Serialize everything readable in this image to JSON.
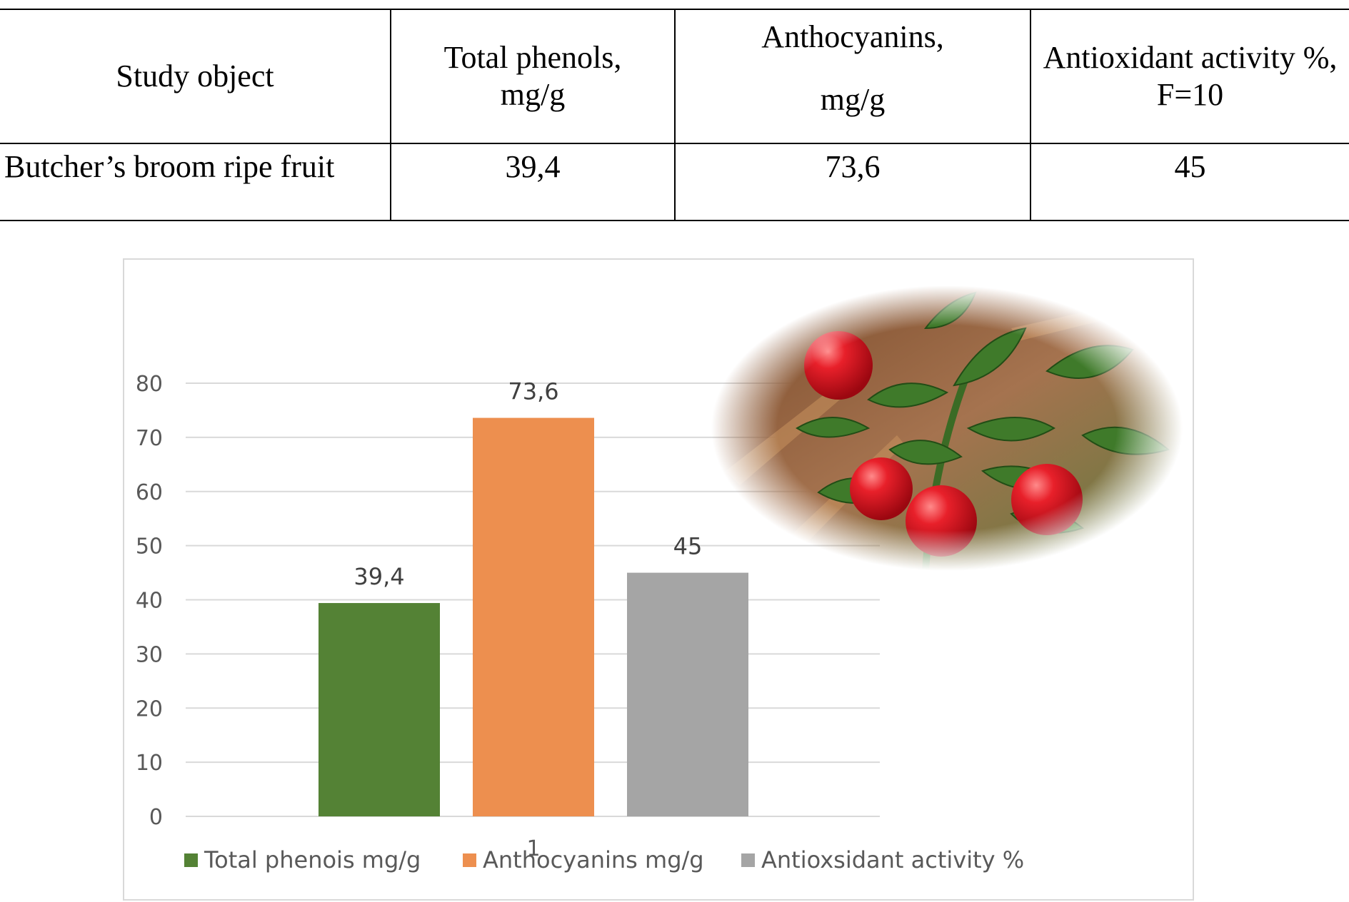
{
  "table": {
    "headers": [
      [
        "Study object"
      ],
      [
        "Total phenols,",
        "mg/g"
      ],
      [
        "Anthocyanins,",
        "mg/g"
      ],
      [
        "Antioxidant activity %,",
        "F=10"
      ]
    ],
    "rows": [
      [
        "Butcher’s broom ripe fruit",
        "39,4",
        "73,6",
        "45"
      ]
    ]
  },
  "chart_data": {
    "type": "bar",
    "categories": [
      "1"
    ],
    "series": [
      {
        "name": "Total phenois mg/g",
        "values": [
          39.4
        ],
        "label": "39,4",
        "color": "#548235"
      },
      {
        "name": "Anthocyanins mg/g",
        "values": [
          73.6
        ],
        "label": "73,6",
        "color": "#ed8f4f"
      },
      {
        "name": "Antioxsidant activity %",
        "values": [
          45
        ],
        "label": "45",
        "color": "#a5a5a5"
      }
    ],
    "yticks": [
      "0",
      "10",
      "20",
      "30",
      "40",
      "50",
      "60",
      "70",
      "80"
    ],
    "ylim": [
      0,
      80
    ],
    "grid": true,
    "legend": "bottom",
    "title": "",
    "xlabel": "",
    "ylabel": ""
  },
  "illustration": {
    "icon": "butchers-broom-berries-image"
  }
}
